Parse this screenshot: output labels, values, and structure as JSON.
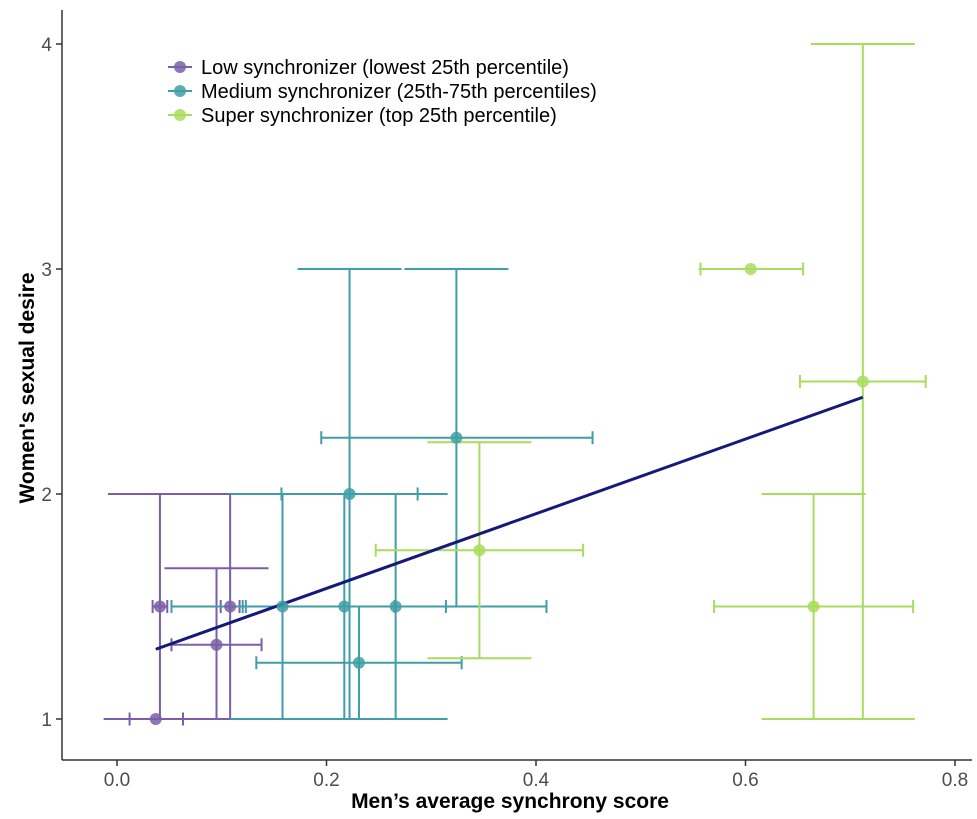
{
  "colors": {
    "low": "#7b5ea7",
    "medium": "#3f9ea6",
    "super": "#a8dc5d",
    "fit": "#14197a",
    "axis": "#333333"
  },
  "chart_data": {
    "type": "scatter",
    "xlabel": "Men’s average synchrony score",
    "ylabel": "Women's sexual desire",
    "xlim": [
      -0.05,
      0.8
    ],
    "ylim": [
      0.9,
      4.15
    ],
    "xticks": [
      0.0,
      0.2,
      0.4,
      0.6,
      0.8
    ],
    "xtick_labels": [
      "0.0",
      "0.2",
      "0.4",
      "0.6",
      "0.8"
    ],
    "yticks": [
      1,
      2,
      3,
      4
    ],
    "ytick_labels": [
      "1",
      "2",
      "3",
      "4"
    ],
    "grid": false,
    "legend_position": "top-left",
    "series": [
      {
        "name": "Low synchronizer (lowest 25th percentile)",
        "color_key": "low",
        "points": [
          {
            "x": 0.037,
            "y": 1.0,
            "xerr": [
              0.012,
              0.063
            ],
            "yerr": [
              1.0,
              1.0
            ]
          },
          {
            "x": 0.041,
            "y": 1.5,
            "xerr": [
              0.034,
              0.048
            ],
            "yerr": [
              1.0,
              2.0
            ]
          },
          {
            "x": 0.095,
            "y": 1.33,
            "xerr": [
              0.052,
              0.138
            ],
            "yerr": [
              1.0,
              1.67
            ]
          },
          {
            "x": 0.108,
            "y": 1.5,
            "xerr": [
              0.099,
              0.117
            ],
            "yerr": [
              1.0,
              2.0
            ]
          }
        ]
      },
      {
        "name": "Medium synchronizer (25th-75th percentiles)",
        "color_key": "medium",
        "points": [
          {
            "x": 0.158,
            "y": 1.5,
            "xerr": [
              0.052,
              0.265
            ],
            "yerr": [
              1.0,
              2.0
            ]
          },
          {
            "x": 0.217,
            "y": 1.5,
            "xerr": [
              0.123,
              0.314
            ],
            "yerr": [
              1.0,
              2.0
            ]
          },
          {
            "x": 0.222,
            "y": 2.0,
            "xerr": [
              0.157,
              0.287
            ],
            "yerr": [
              1.0,
              3.0
            ]
          },
          {
            "x": 0.231,
            "y": 1.25,
            "xerr": [
              0.133,
              0.329
            ],
            "yerr": [
              1.0,
              1.5
            ]
          },
          {
            "x": 0.266,
            "y": 1.5,
            "xerr": [
              0.12,
              0.41
            ],
            "yerr": [
              1.0,
              2.0
            ]
          },
          {
            "x": 0.324,
            "y": 2.25,
            "xerr": [
              0.195,
              0.454
            ],
            "yerr": [
              1.5,
              3.0
            ]
          }
        ]
      },
      {
        "name": "Super synchronizer (top 25th percentile)",
        "color_key": "super",
        "points": [
          {
            "x": 0.346,
            "y": 1.75,
            "xerr": [
              0.247,
              0.445
            ],
            "yerr": [
              1.27,
              2.23
            ]
          },
          {
            "x": 0.605,
            "y": 3.0,
            "xerr": [
              0.557,
              0.655
            ],
            "yerr": [
              3.0,
              3.0
            ]
          },
          {
            "x": 0.665,
            "y": 1.5,
            "xerr": [
              0.57,
              0.76
            ],
            "yerr": [
              1.0,
              2.0
            ]
          },
          {
            "x": 0.712,
            "y": 2.5,
            "xerr": [
              0.652,
              0.772
            ],
            "yerr": [
              1.0,
              4.0
            ]
          }
        ]
      }
    ],
    "fit_line": {
      "x": [
        0.037,
        0.712
      ],
      "y": [
        1.31,
        2.43
      ]
    }
  }
}
